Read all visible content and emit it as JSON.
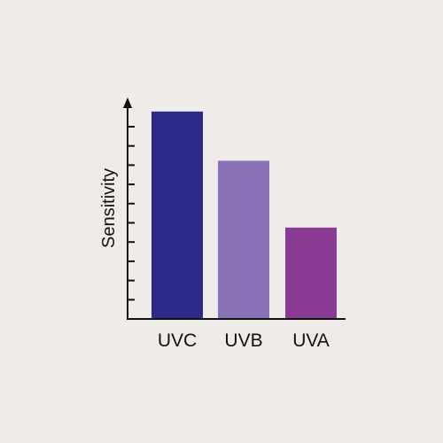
{
  "chart_data": {
    "type": "bar",
    "categories": [
      "UVC",
      "UVB",
      "UVA"
    ],
    "values": [
      236,
      180,
      104
    ],
    "ylabel": "Sensitivity",
    "xlabel": "",
    "ylim": [
      0,
      250
    ],
    "y_ticks": 11,
    "y_values_shown": false,
    "grid": false,
    "legend": "none",
    "bar_colors": [
      "#2e2a8a",
      "#8a72b6",
      "#8a3b93"
    ],
    "axis_color": "#111111"
  }
}
